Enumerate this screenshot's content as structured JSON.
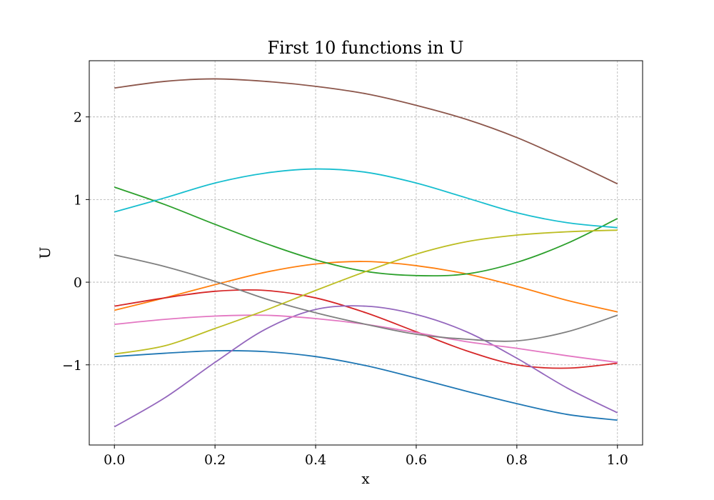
{
  "chart_data": {
    "type": "line",
    "title": "First 10 functions in U",
    "xlabel": "x",
    "ylabel": "U",
    "xlim": [
      -0.05,
      1.05
    ],
    "ylim": [
      -1.97,
      2.68
    ],
    "xticks": [
      0.0,
      0.2,
      0.4,
      0.6,
      0.8,
      1.0
    ],
    "xtick_labels": [
      "0.0",
      "0.2",
      "0.4",
      "0.6",
      "0.8",
      "1.0"
    ],
    "yticks": [
      -1,
      0,
      1,
      2
    ],
    "ytick_labels": [
      "−1",
      "0",
      "1",
      "2"
    ],
    "grid": true,
    "x": [
      0.0,
      0.1,
      0.2,
      0.3,
      0.4,
      0.5,
      0.6,
      0.7,
      0.8,
      0.9,
      1.0
    ],
    "series": [
      {
        "color": "#1f77b4",
        "values": [
          -0.9,
          -0.86,
          -0.83,
          -0.84,
          -0.9,
          -1.01,
          -1.16,
          -1.32,
          -1.47,
          -1.6,
          -1.67
        ]
      },
      {
        "color": "#ff7f0e",
        "values": [
          -0.34,
          -0.19,
          -0.03,
          0.12,
          0.22,
          0.25,
          0.2,
          0.1,
          -0.05,
          -0.22,
          -0.36
        ]
      },
      {
        "color": "#2ca02c",
        "values": [
          1.15,
          0.94,
          0.7,
          0.47,
          0.27,
          0.13,
          0.08,
          0.1,
          0.24,
          0.47,
          0.77
        ]
      },
      {
        "color": "#d62728",
        "values": [
          -0.29,
          -0.19,
          -0.11,
          -0.1,
          -0.19,
          -0.37,
          -0.6,
          -0.83,
          -1.0,
          -1.04,
          -0.98
        ]
      },
      {
        "color": "#9467bd",
        "values": [
          -1.75,
          -1.4,
          -0.97,
          -0.57,
          -0.33,
          -0.29,
          -0.39,
          -0.6,
          -0.92,
          -1.28,
          -1.58
        ]
      },
      {
        "color": "#8c564b",
        "values": [
          2.35,
          2.43,
          2.46,
          2.43,
          2.37,
          2.28,
          2.14,
          1.97,
          1.75,
          1.48,
          1.19
        ]
      },
      {
        "color": "#e377c2",
        "values": [
          -0.51,
          -0.45,
          -0.41,
          -0.4,
          -0.44,
          -0.51,
          -0.61,
          -0.72,
          -0.8,
          -0.89,
          -0.97
        ]
      },
      {
        "color": "#7f7f7f",
        "values": [
          0.33,
          0.19,
          0.01,
          -0.2,
          -0.37,
          -0.51,
          -0.63,
          -0.69,
          -0.71,
          -0.6,
          -0.4
        ]
      },
      {
        "color": "#bcbd22",
        "values": [
          -0.87,
          -0.77,
          -0.56,
          -0.34,
          -0.1,
          0.13,
          0.34,
          0.49,
          0.57,
          0.61,
          0.63
        ]
      },
      {
        "color": "#17becf",
        "values": [
          0.85,
          1.02,
          1.2,
          1.32,
          1.37,
          1.33,
          1.2,
          1.02,
          0.84,
          0.72,
          0.66
        ]
      }
    ]
  }
}
